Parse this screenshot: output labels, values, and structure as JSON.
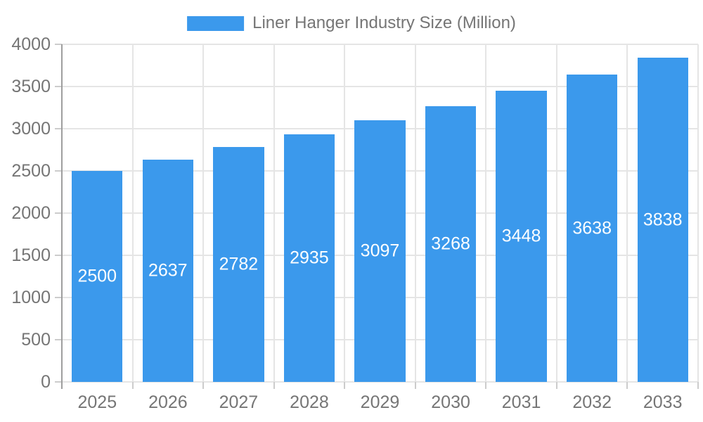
{
  "legend": {
    "label": "Liner Hanger Industry Size (Million)"
  },
  "colors": {
    "bar": "#3B99EC",
    "grid": "#E5E5E5",
    "axis": "#9E9E9E",
    "tick": "#CCCCCC",
    "text": "#757575",
    "bar_label": "#FFFFFF",
    "background": "#FFFFFF"
  },
  "chart_data": {
    "type": "bar",
    "title": "Liner Hanger Industry Size (Million)",
    "categories": [
      "2025",
      "2026",
      "2027",
      "2028",
      "2029",
      "2030",
      "2031",
      "2032",
      "2033"
    ],
    "values": [
      2500,
      2637,
      2782,
      2935,
      3097,
      3268,
      3448,
      3638,
      3838
    ],
    "xlabel": "",
    "ylabel": "",
    "ylim": [
      0,
      4000
    ],
    "ytick_step": 500,
    "yticks": [
      0,
      500,
      1000,
      1500,
      2000,
      2500,
      3000,
      3500,
      4000
    ],
    "grid": true,
    "legend_position": "top-center",
    "value_labels": "centered-inside-white"
  }
}
